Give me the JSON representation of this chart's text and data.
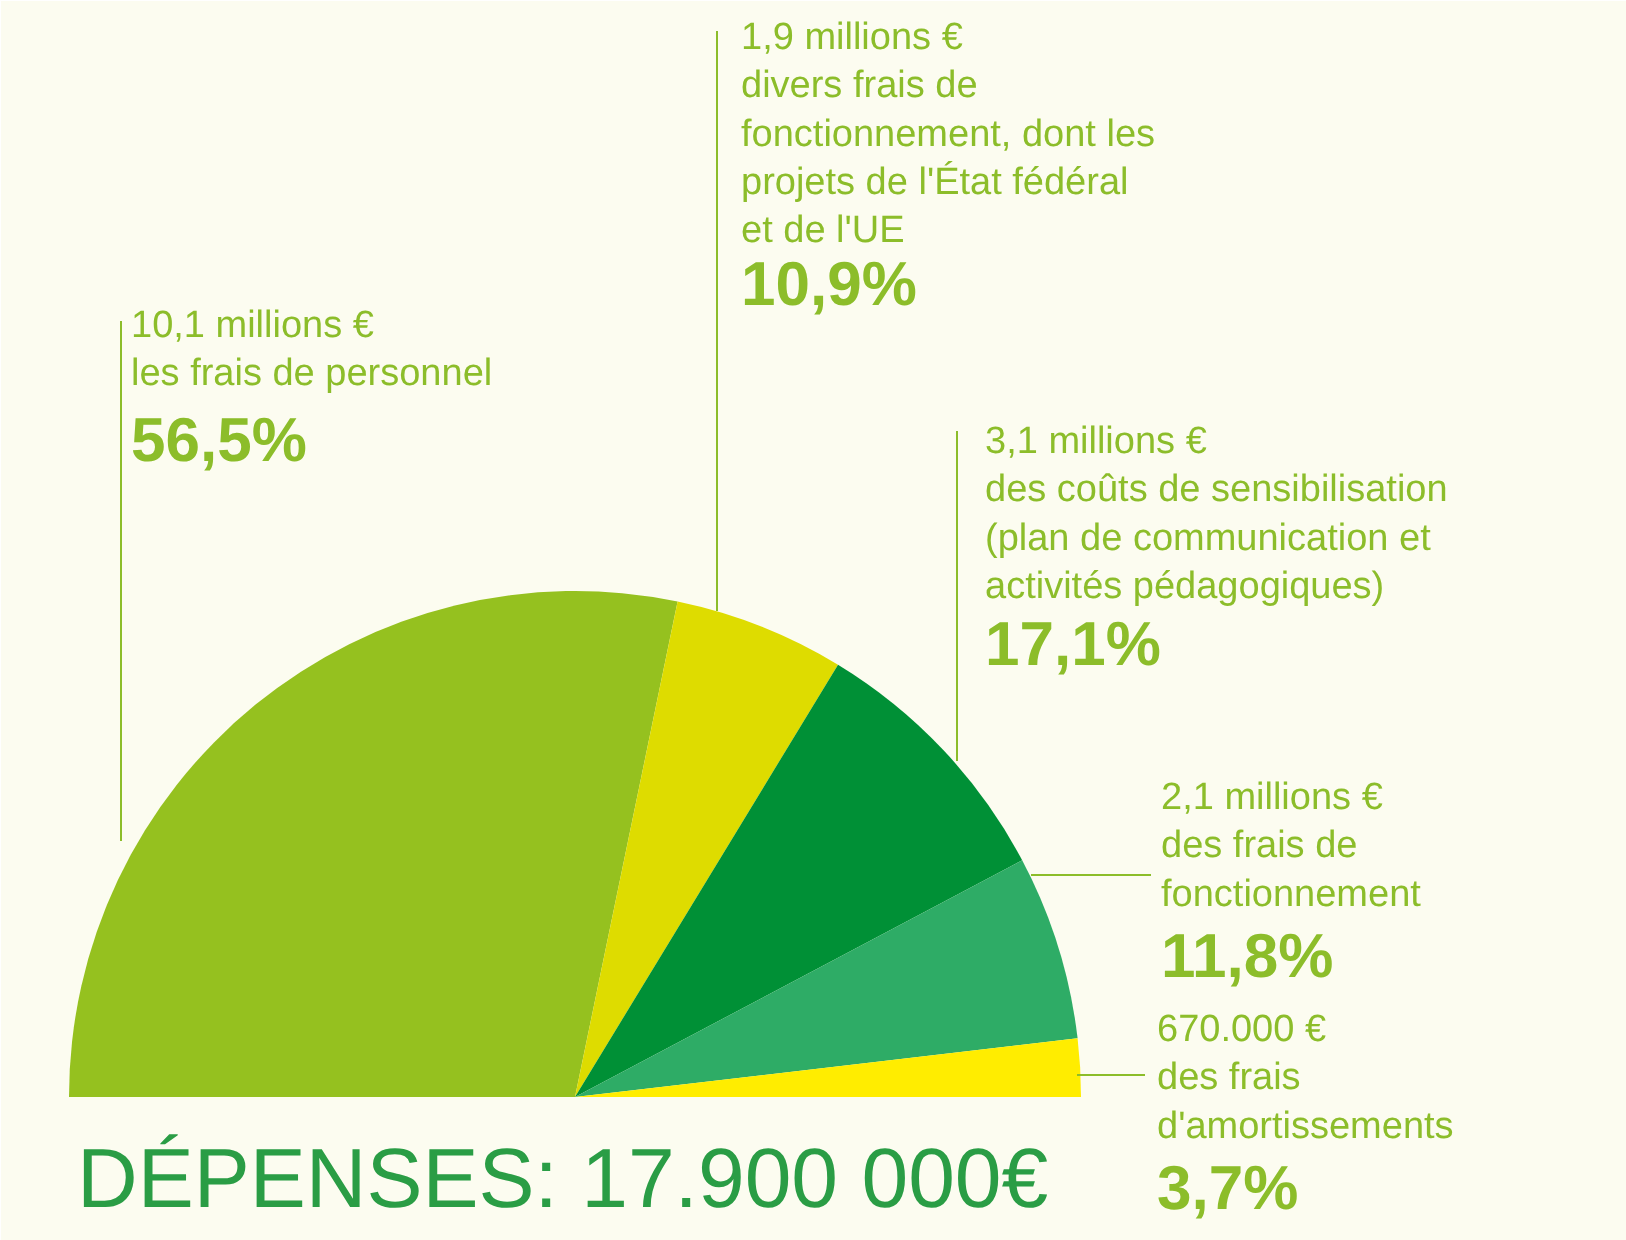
{
  "chart_data": {
    "type": "pie",
    "title": "DÉPENSES: 17.900 000€",
    "categories": [
      "10,1 millions €\nles frais de personnel",
      "1,9 millions €\ndivers frais de\nfonctionnement, dont les\nprojets de l'État fédéral\net de l'UE",
      "3,1 millions €\ndes coûts de sensibilisation\n(plan de communication et\nactivités pédagogiques)",
      "2,1 millions €\ndes frais de\nfonctionnement",
      "670.000 €\ndes frais\nd'amortissements"
    ],
    "values": [
      56.5,
      10.9,
      17.1,
      11.8,
      3.7
    ],
    "colors": [
      "#95c11f",
      "#dedc00",
      "#009036",
      "#2eac66",
      "#ffed00"
    ],
    "value_labels": [
      "56,5%",
      "10,9%",
      "17,1%",
      "11,8%",
      "3,7%"
    ]
  }
}
